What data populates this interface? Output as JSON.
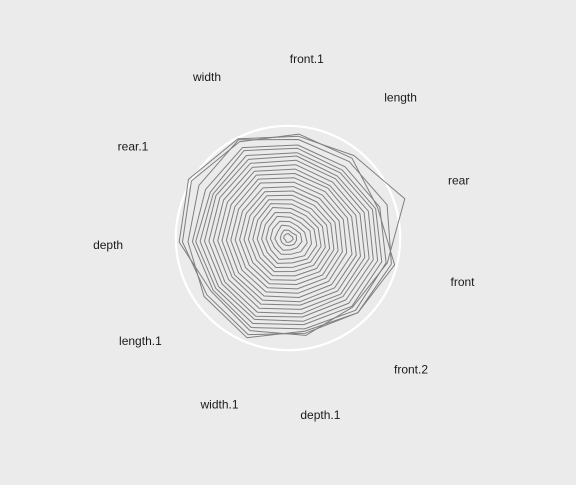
{
  "chart_data": {
    "type": "radar",
    "axes": [
      "front.1",
      "length",
      "rear",
      "front",
      "front.2",
      "depth.1",
      "width.1",
      "length.1",
      "depth",
      "rear.1",
      "width"
    ],
    "rlim": [
      0,
      1
    ],
    "grid": true,
    "legend": "none",
    "colors": {
      "background": "#ebebeb",
      "series_line": "#7f7f7f",
      "grid_circle": "#ffffff"
    },
    "series": [
      {
        "values": [
          0.95,
          0.93,
          0.86,
          1.0,
          0.93,
          0.88,
          0.95,
          0.9,
          0.96,
          1.02,
          0.98
        ]
      },
      {
        "values": [
          0.93,
          0.96,
          1.12,
          0.93,
          0.86,
          0.9,
          0.91,
          0.85,
          0.99,
          1.05,
          1.01
        ]
      },
      {
        "values": [
          0.9,
          0.89,
          0.95,
          0.97,
          0.93,
          0.86,
          0.98,
          0.93,
          0.91,
          0.94,
          1.0
        ]
      },
      {
        "values": [
          0.85,
          0.83,
          0.88,
          0.92,
          0.9,
          0.84,
          0.88,
          0.83,
          0.87,
          0.87,
          0.92
        ]
      },
      {
        "values": [
          0.82,
          0.79,
          0.84,
          0.88,
          0.85,
          0.8,
          0.84,
          0.8,
          0.84,
          0.82,
          0.89
        ]
      },
      {
        "values": [
          0.78,
          0.76,
          0.81,
          0.84,
          0.81,
          0.77,
          0.8,
          0.77,
          0.8,
          0.79,
          0.84
        ]
      },
      {
        "values": [
          0.75,
          0.72,
          0.77,
          0.8,
          0.77,
          0.73,
          0.77,
          0.73,
          0.76,
          0.76,
          0.8
        ]
      },
      {
        "values": [
          0.71,
          0.69,
          0.73,
          0.76,
          0.73,
          0.7,
          0.73,
          0.7,
          0.72,
          0.72,
          0.76
        ]
      },
      {
        "values": [
          0.67,
          0.65,
          0.69,
          0.72,
          0.7,
          0.66,
          0.69,
          0.66,
          0.68,
          0.68,
          0.72
        ]
      },
      {
        "values": [
          0.63,
          0.61,
          0.65,
          0.68,
          0.66,
          0.62,
          0.65,
          0.62,
          0.64,
          0.64,
          0.68
        ]
      },
      {
        "values": [
          0.59,
          0.58,
          0.61,
          0.64,
          0.62,
          0.59,
          0.61,
          0.59,
          0.6,
          0.6,
          0.64
        ]
      },
      {
        "values": [
          0.55,
          0.54,
          0.57,
          0.6,
          0.58,
          0.55,
          0.57,
          0.55,
          0.56,
          0.56,
          0.6
        ]
      },
      {
        "values": [
          0.51,
          0.5,
          0.53,
          0.55,
          0.54,
          0.51,
          0.53,
          0.51,
          0.52,
          0.52,
          0.56
        ]
      },
      {
        "values": [
          0.47,
          0.46,
          0.49,
          0.51,
          0.5,
          0.47,
          0.49,
          0.47,
          0.48,
          0.48,
          0.51
        ]
      },
      {
        "values": [
          0.43,
          0.42,
          0.45,
          0.47,
          0.46,
          0.43,
          0.45,
          0.43,
          0.44,
          0.44,
          0.47
        ]
      },
      {
        "values": [
          0.39,
          0.38,
          0.41,
          0.43,
          0.42,
          0.39,
          0.41,
          0.39,
          0.4,
          0.4,
          0.43
        ]
      },
      {
        "values": [
          0.35,
          0.34,
          0.37,
          0.39,
          0.38,
          0.35,
          0.37,
          0.35,
          0.36,
          0.36,
          0.39
        ]
      },
      {
        "values": [
          0.31,
          0.3,
          0.33,
          0.35,
          0.34,
          0.31,
          0.33,
          0.31,
          0.32,
          0.32,
          0.35
        ]
      },
      {
        "values": [
          0.27,
          0.26,
          0.29,
          0.31,
          0.3,
          0.27,
          0.29,
          0.27,
          0.28,
          0.28,
          0.31
        ]
      },
      {
        "values": [
          0.23,
          0.22,
          0.25,
          0.27,
          0.26,
          0.23,
          0.25,
          0.23,
          0.24,
          0.24,
          0.26
        ]
      },
      {
        "values": [
          0.19,
          0.18,
          0.21,
          0.22,
          0.22,
          0.19,
          0.21,
          0.19,
          0.2,
          0.2,
          0.22
        ]
      },
      {
        "values": [
          0.15,
          0.14,
          0.16,
          0.18,
          0.17,
          0.15,
          0.16,
          0.15,
          0.16,
          0.16,
          0.17
        ]
      },
      {
        "values": [
          0.11,
          0.1,
          0.12,
          0.13,
          0.12,
          0.11,
          0.12,
          0.11,
          0.12,
          0.11,
          0.13
        ]
      },
      {
        "values": [
          0.07,
          0.06,
          0.08,
          0.08,
          0.08,
          0.07,
          0.07,
          0.07,
          0.07,
          0.07,
          0.08
        ]
      },
      {
        "values": [
          0.04,
          0.03,
          0.04,
          0.05,
          0.04,
          0.04,
          0.04,
          0.03,
          0.04,
          0.04,
          0.04
        ]
      }
    ]
  }
}
